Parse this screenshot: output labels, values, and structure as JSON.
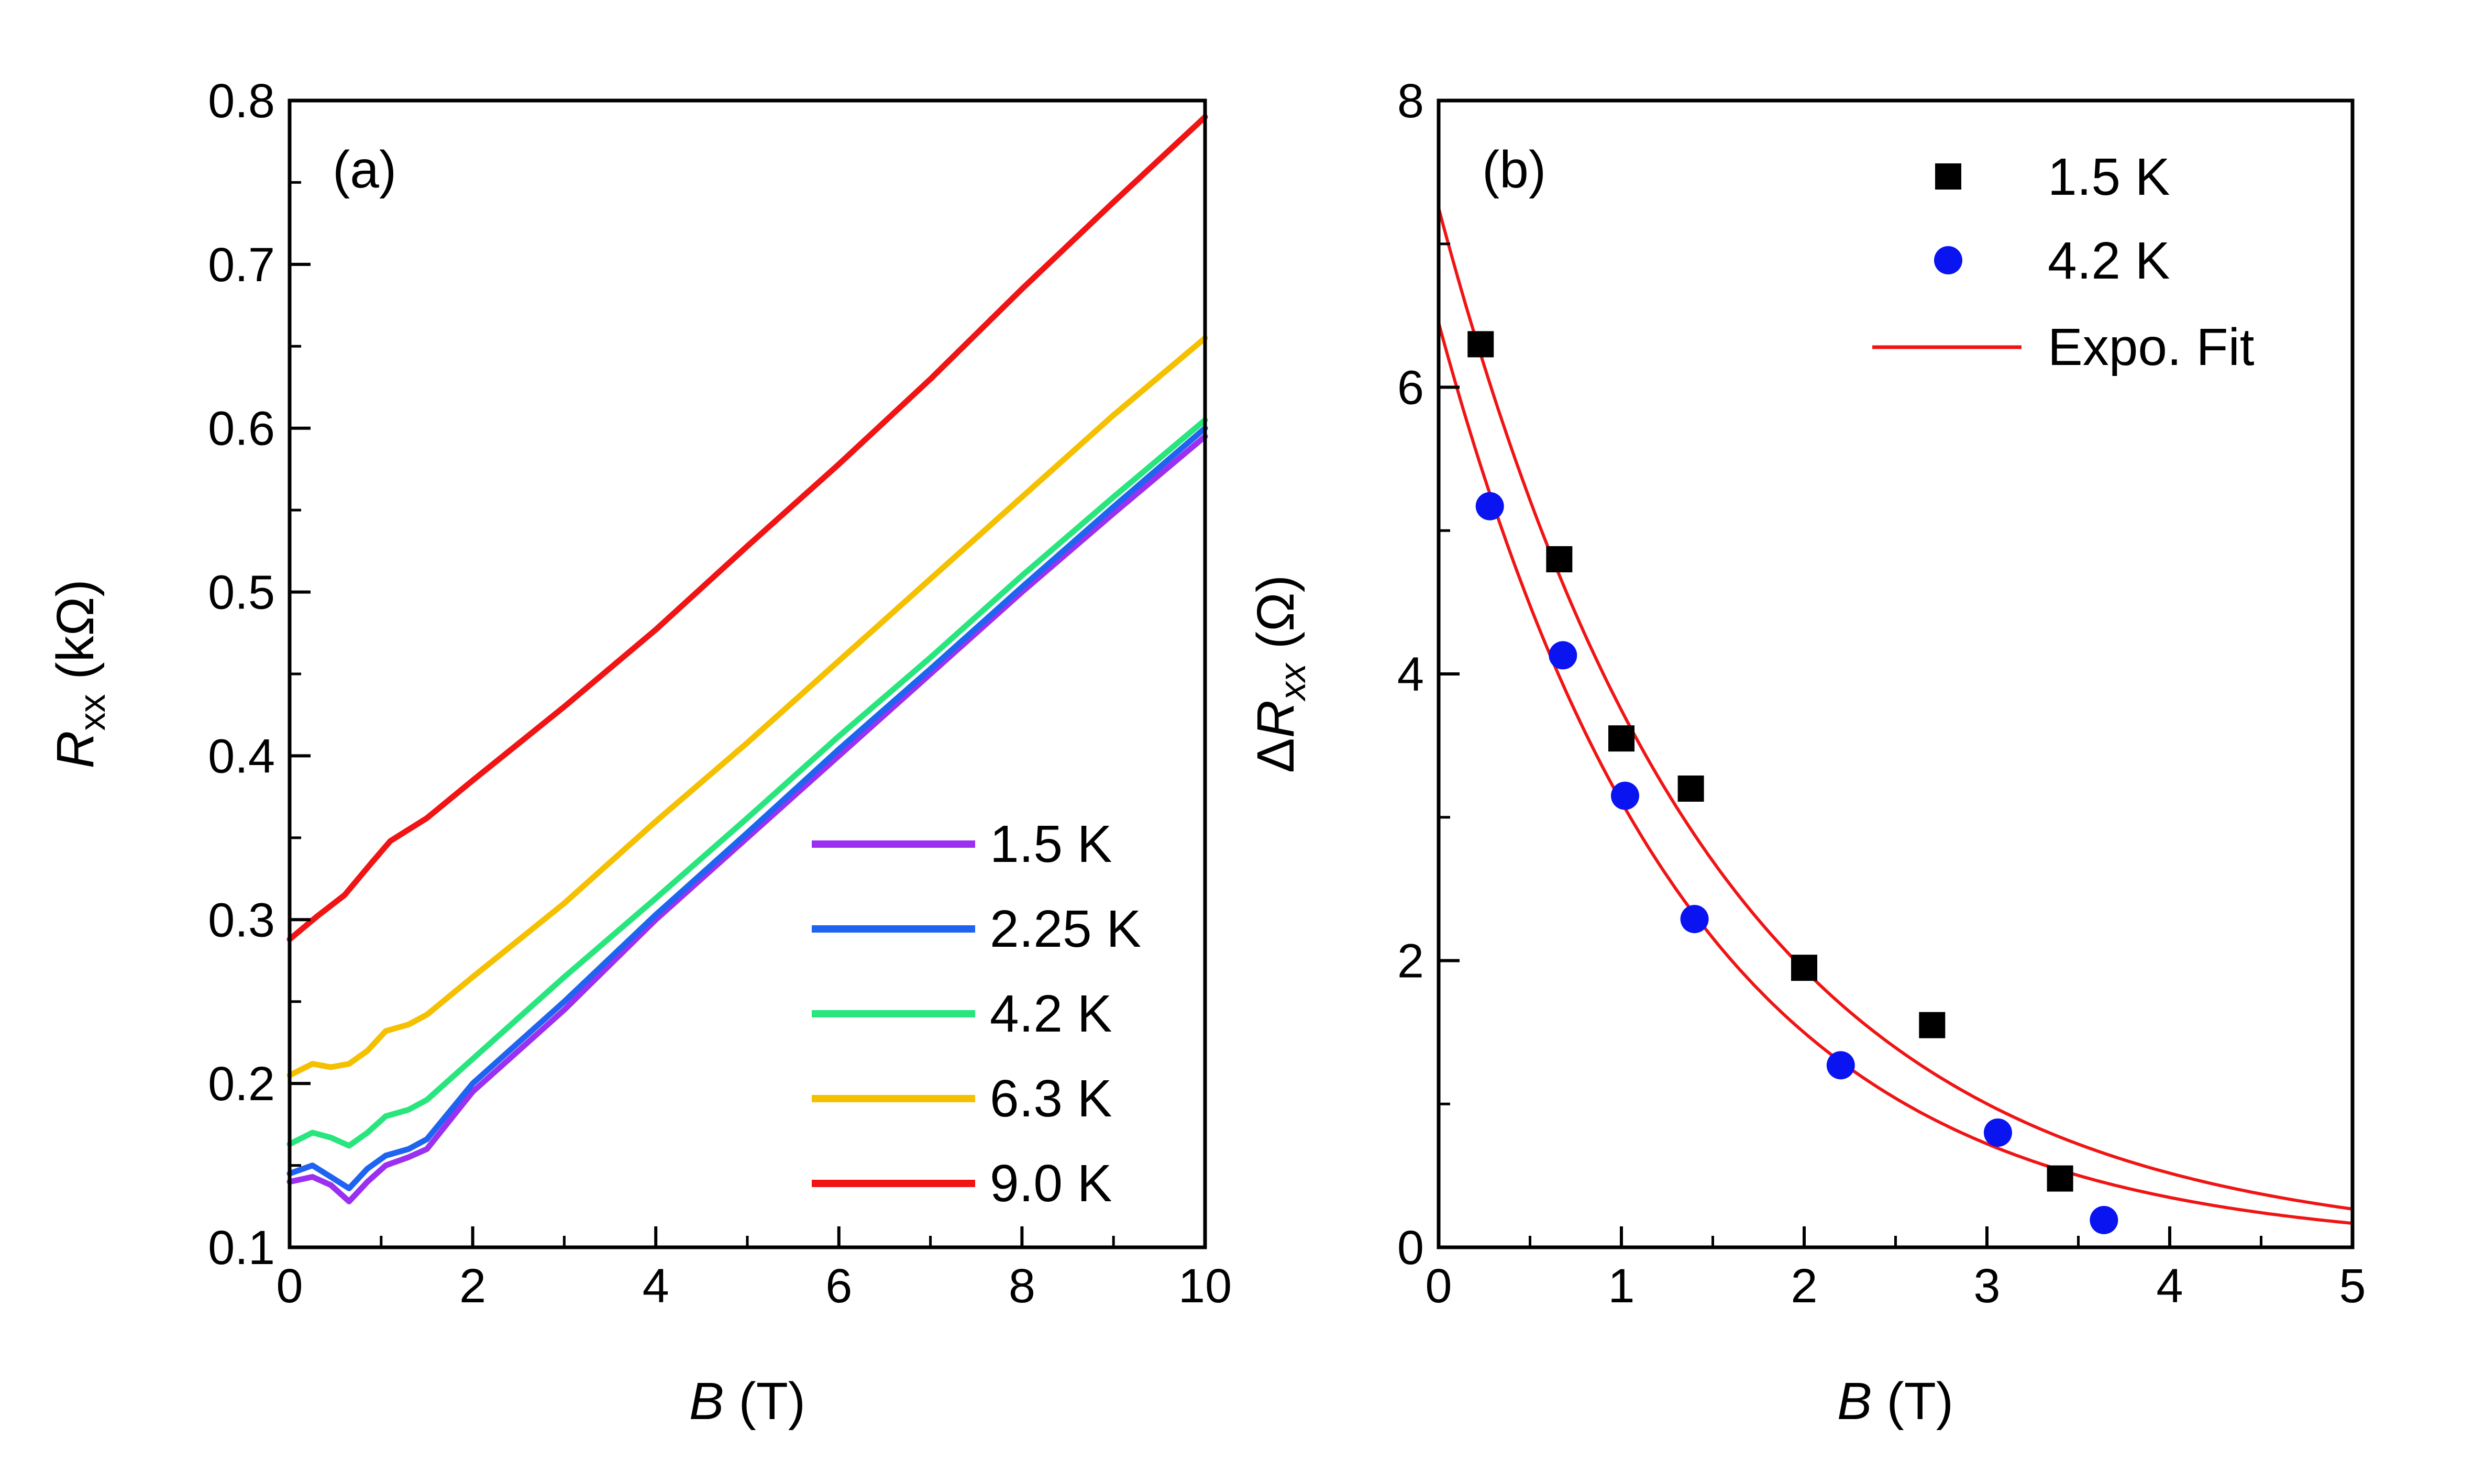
{
  "chart_data": [
    {
      "type": "line",
      "panel_label": "(a)",
      "xlabel": "B (T)",
      "ylabel": "Rxx (kΩ)",
      "xlim": [
        0,
        10
      ],
      "ylim": [
        0.1,
        0.8
      ],
      "x_ticks": [
        "0",
        "2",
        "4",
        "6",
        "8",
        "10"
      ],
      "y_ticks": [
        "0.1",
        "0.2",
        "0.3",
        "0.4",
        "0.5",
        "0.6",
        "0.7",
        "0.8"
      ],
      "legend_position": "bottom-right",
      "series": [
        {
          "name": "1.5 K",
          "color": "#9B30F0",
          "points": [
            [
              0,
              0.14
            ],
            [
              0.25,
              0.143
            ],
            [
              0.45,
              0.138
            ],
            [
              0.65,
              0.128
            ],
            [
              0.85,
              0.14
            ],
            [
              1.05,
              0.15
            ],
            [
              1.3,
              0.155
            ],
            [
              1.5,
              0.16
            ],
            [
              2,
              0.195
            ],
            [
              3,
              0.245
            ],
            [
              4,
              0.3
            ],
            [
              5,
              0.35
            ],
            [
              6,
              0.4
            ],
            [
              7,
              0.45
            ],
            [
              8,
              0.5
            ],
            [
              9,
              0.548
            ],
            [
              10,
              0.595
            ]
          ]
        },
        {
          "name": "2.25 K",
          "color": "#1E64F0",
          "points": [
            [
              0,
              0.145
            ],
            [
              0.25,
              0.15
            ],
            [
              0.45,
              0.143
            ],
            [
              0.65,
              0.136
            ],
            [
              0.85,
              0.148
            ],
            [
              1.05,
              0.156
            ],
            [
              1.3,
              0.16
            ],
            [
              1.5,
              0.166
            ],
            [
              2,
              0.2
            ],
            [
              3,
              0.25
            ],
            [
              4,
              0.303
            ],
            [
              5,
              0.353
            ],
            [
              6,
              0.404
            ],
            [
              7,
              0.453
            ],
            [
              8,
              0.503
            ],
            [
              9,
              0.552
            ],
            [
              10,
              0.6
            ]
          ]
        },
        {
          "name": "4.2 K",
          "color": "#28E67D",
          "points": [
            [
              0,
              0.163
            ],
            [
              0.25,
              0.17
            ],
            [
              0.45,
              0.167
            ],
            [
              0.65,
              0.162
            ],
            [
              0.85,
              0.17
            ],
            [
              1.05,
              0.18
            ],
            [
              1.3,
              0.184
            ],
            [
              1.5,
              0.19
            ],
            [
              2,
              0.215
            ],
            [
              3,
              0.265
            ],
            [
              4,
              0.313
            ],
            [
              5,
              0.362
            ],
            [
              6,
              0.412
            ],
            [
              7,
              0.46
            ],
            [
              8,
              0.51
            ],
            [
              9,
              0.558
            ],
            [
              10,
              0.605
            ]
          ]
        },
        {
          "name": "6.3 K",
          "color": "#F5C000",
          "points": [
            [
              0,
              0.205
            ],
            [
              0.25,
              0.212
            ],
            [
              0.45,
              0.21
            ],
            [
              0.65,
              0.212
            ],
            [
              0.85,
              0.22
            ],
            [
              1.05,
              0.232
            ],
            [
              1.3,
              0.236
            ],
            [
              1.5,
              0.242
            ],
            [
              2,
              0.265
            ],
            [
              3,
              0.31
            ],
            [
              4,
              0.36
            ],
            [
              5,
              0.408
            ],
            [
              6,
              0.458
            ],
            [
              7,
              0.508
            ],
            [
              8,
              0.558
            ],
            [
              9,
              0.608
            ],
            [
              10,
              0.655
            ]
          ]
        },
        {
          "name": "9.0 K",
          "color": "#F01414",
          "points": [
            [
              0,
              0.288
            ],
            [
              0.3,
              0.302
            ],
            [
              0.6,
              0.315
            ],
            [
              0.9,
              0.335
            ],
            [
              1.1,
              0.348
            ],
            [
              1.5,
              0.362
            ],
            [
              2,
              0.385
            ],
            [
              3,
              0.43
            ],
            [
              4,
              0.477
            ],
            [
              5,
              0.528
            ],
            [
              6,
              0.578
            ],
            [
              7,
              0.63
            ],
            [
              8,
              0.685
            ],
            [
              9,
              0.738
            ],
            [
              10,
              0.79
            ]
          ]
        }
      ]
    },
    {
      "type": "scatter",
      "panel_label": "(b)",
      "xlabel": "B (T)",
      "ylabel": "ΔRxx (Ω)",
      "xlim": [
        0,
        5
      ],
      "ylim": [
        0,
        8
      ],
      "x_ticks": [
        "0",
        "1",
        "2",
        "3",
        "4",
        "5"
      ],
      "y_ticks": [
        "0",
        "2",
        "4",
        "6",
        "8"
      ],
      "legend_position": "top-right",
      "series": [
        {
          "name": "1.5 K",
          "marker": "square",
          "color": "#000000",
          "points": [
            [
              0.23,
              6.3
            ],
            [
              0.66,
              4.8
            ],
            [
              1.0,
              3.55
            ],
            [
              1.38,
              3.2
            ],
            [
              2.0,
              1.95
            ],
            [
              2.7,
              1.55
            ],
            [
              3.4,
              0.48
            ]
          ]
        },
        {
          "name": "4.2 K",
          "marker": "circle",
          "color": "#0A14F0",
          "points": [
            [
              0.28,
              5.17
            ],
            [
              0.68,
              4.13
            ],
            [
              1.02,
              3.15
            ],
            [
              1.4,
              2.29
            ],
            [
              2.2,
              1.27
            ],
            [
              3.06,
              0.8
            ],
            [
              3.64,
              0.19
            ]
          ]
        }
      ],
      "fits": [
        {
          "name": "Expo. Fit",
          "color": "#F01414",
          "a": 7.25,
          "b": 0.66
        },
        {
          "a": 6.45,
          "b": 0.73,
          "color": "#F01414"
        }
      ]
    }
  ]
}
